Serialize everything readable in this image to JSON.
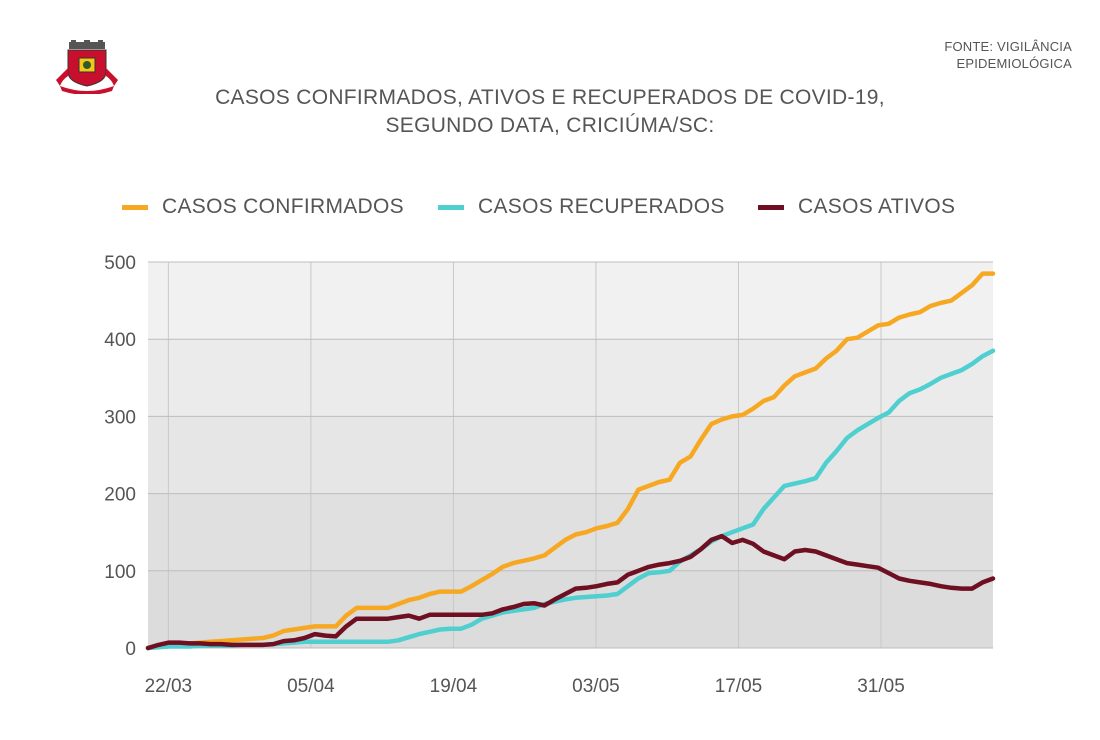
{
  "source": {
    "line1": "FONTE: VIGILÂNCIA",
    "line2": "EPIDEMIOLÓGICA"
  },
  "title": {
    "line1": "CASOS CONFIRMADOS, ATIVOS E RECUPERADOS DE COVID-19,",
    "line2": "SEGUNDO DATA, CRICIÚMA/SC:"
  },
  "chart_data": {
    "type": "line",
    "ylim": [
      0,
      500
    ],
    "yticks": [
      0,
      100,
      200,
      300,
      400,
      500
    ],
    "xticks": [
      "22/03",
      "05/04",
      "19/04",
      "03/05",
      "17/05",
      "31/05"
    ],
    "x_start": "2020-03-20",
    "x_end": "2020-06-11",
    "grid": true,
    "legend_position": "top",
    "series": [
      {
        "name": "CASOS CONFIRMADOS",
        "color": "#F7A823",
        "values": [
          0,
          2,
          4,
          5,
          6,
          7,
          8,
          9,
          10,
          11,
          12,
          13,
          16,
          22,
          24,
          26,
          28,
          28,
          28,
          42,
          52,
          52,
          52,
          52,
          57,
          62,
          65,
          70,
          73,
          73,
          73,
          80,
          88,
          96,
          105,
          110,
          113,
          116,
          120,
          130,
          140,
          147,
          150,
          155,
          158,
          162,
          180,
          205,
          210,
          215,
          218,
          240,
          248,
          270,
          290,
          296,
          300,
          302,
          310,
          320,
          325,
          340,
          352,
          357,
          362,
          375,
          385,
          400,
          402,
          410,
          418,
          420,
          428,
          432,
          435,
          443,
          447,
          450,
          460,
          470,
          485,
          485
        ]
      },
      {
        "name": "CASOS RECUPERADOS",
        "color": "#4FCFCF",
        "values": [
          0,
          1,
          2,
          2,
          2,
          3,
          3,
          3,
          3,
          4,
          4,
          4,
          5,
          6,
          7,
          8,
          8,
          8,
          8,
          8,
          8,
          8,
          8,
          8,
          10,
          14,
          18,
          21,
          24,
          25,
          25,
          30,
          38,
          42,
          46,
          48,
          50,
          52,
          57,
          60,
          63,
          65,
          66,
          67,
          68,
          70,
          80,
          90,
          97,
          98,
          100,
          112,
          120,
          128,
          138,
          145,
          150,
          155,
          160,
          180,
          195,
          210,
          213,
          216,
          220,
          240,
          255,
          272,
          282,
          290,
          298,
          305,
          320,
          330,
          335,
          342,
          350,
          355,
          360,
          368,
          378,
          385
        ]
      },
      {
        "name": "CASOS ATIVOS",
        "color": "#6E0F22",
        "values": [
          0,
          4,
          7,
          7,
          6,
          6,
          5,
          5,
          4,
          4,
          4,
          4,
          5,
          9,
          10,
          13,
          18,
          16,
          15,
          28,
          38,
          38,
          38,
          38,
          40,
          42,
          38,
          43,
          43,
          43,
          43,
          43,
          43,
          45,
          50,
          53,
          57,
          58,
          55,
          63,
          70,
          77,
          78,
          80,
          83,
          85,
          95,
          100,
          105,
          108,
          110,
          113,
          118,
          128,
          140,
          145,
          136,
          140,
          135,
          125,
          120,
          115,
          125,
          127,
          125,
          120,
          115,
          110,
          108,
          106,
          104,
          97,
          90,
          87,
          85,
          83,
          80,
          78,
          77,
          77,
          85,
          90
        ]
      }
    ]
  }
}
